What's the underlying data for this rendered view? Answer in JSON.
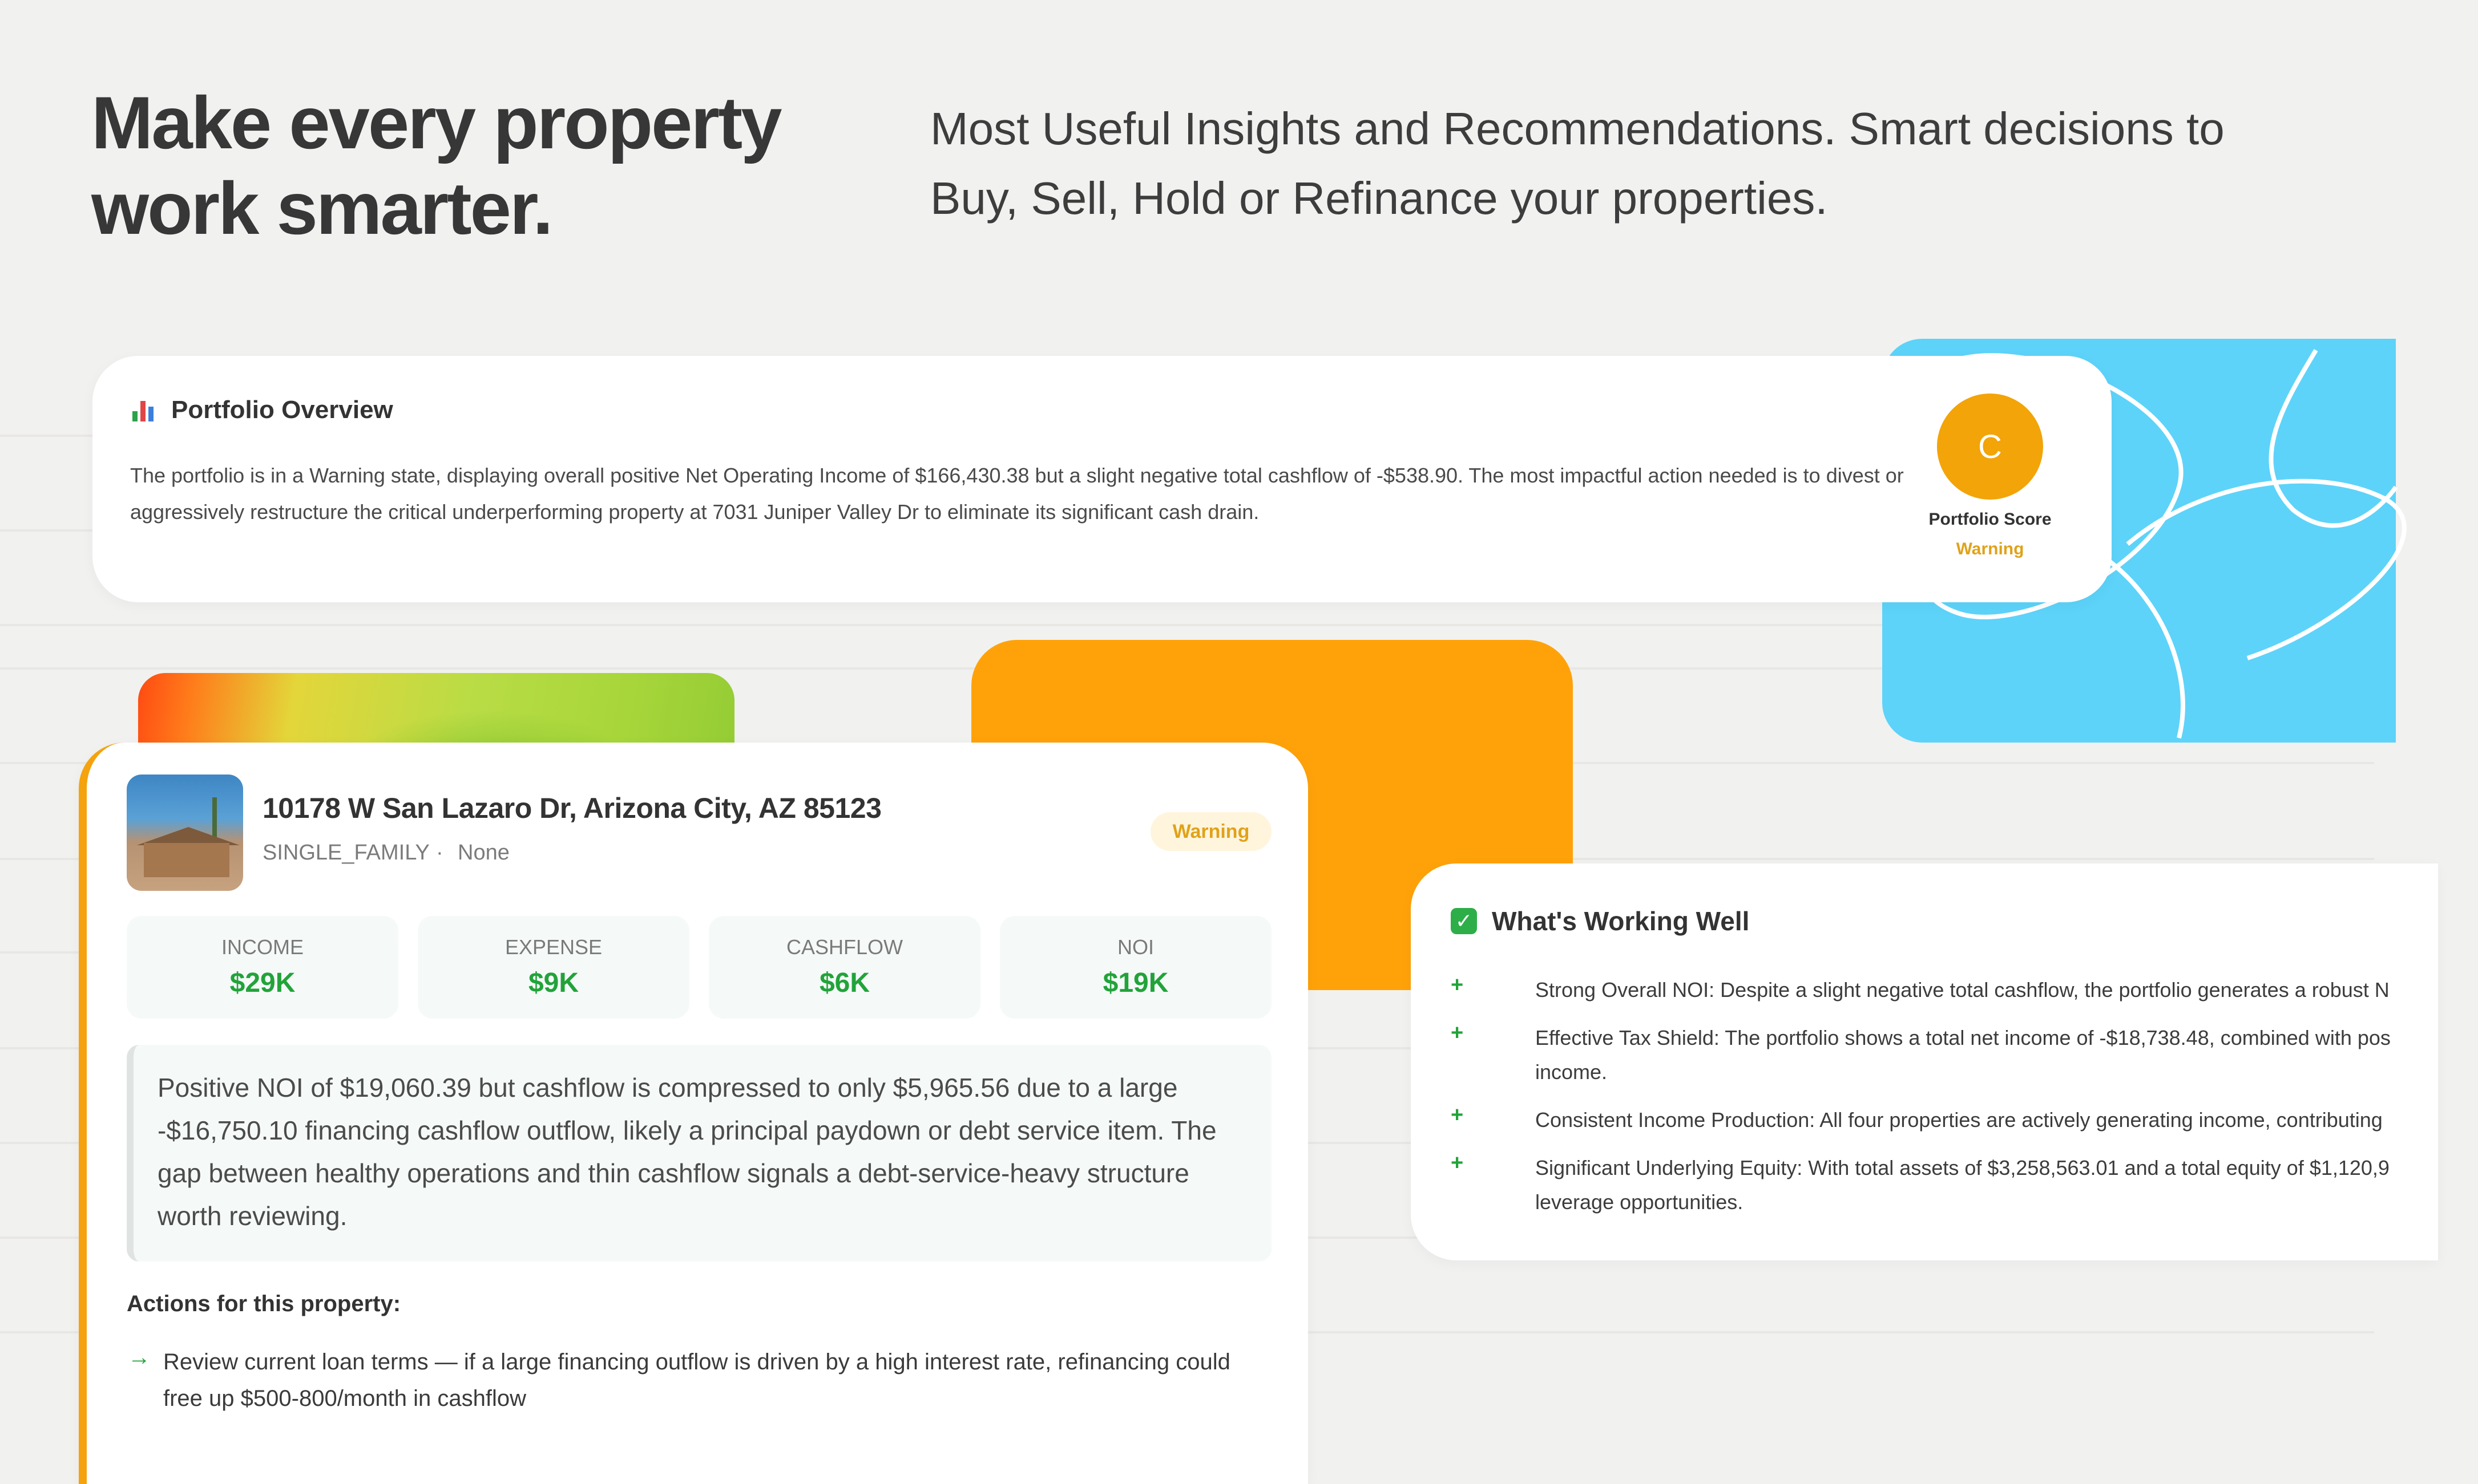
{
  "hero": {
    "title": "Make every property\nwork smarter.",
    "subtitle": "Most Useful Insights and Recommendations. Smart decisions to\nBuy, Sell, Hold or Refinance your properties."
  },
  "overview": {
    "icon": "bar-chart-icon",
    "title": "Portfolio Overview",
    "body": "The portfolio is in a Warning state, displaying overall positive Net Operating Income of $166,430.38 but a slight negative total cashflow of -$538.90. The most impactful action needed is to divest or aggressively restructure the critical underperforming property at 7031 Juniper Valley Dr to eliminate its significant cash drain.",
    "score_grade": "C",
    "score_label": "Portfolio Score",
    "score_status": "Warning"
  },
  "property": {
    "address": "10178 W San Lazaro Dr, Arizona City, AZ 85123",
    "type": "SINGLE_FAMILY",
    "separator": "·",
    "subtype": "None",
    "status": "Warning",
    "metrics": [
      {
        "label": "INCOME",
        "value": "$29K"
      },
      {
        "label": "EXPENSE",
        "value": "$9K"
      },
      {
        "label": "CASHFLOW",
        "value": "$6K"
      },
      {
        "label": "NOI",
        "value": "$19K"
      }
    ],
    "insight": "Positive NOI of $19,060.39 but cashflow is compressed to only $5,965.56 due to a large -$16,750.10 financing cashflow outflow, likely a principal paydown or debt service item. The gap between healthy operations and thin cashflow signals a debt-service-heavy structure worth reviewing.",
    "actions_title": "Actions for this property:",
    "actions": [
      {
        "arrow": "→",
        "text": "Review current loan terms — if a large financing outflow is driven by a high interest rate, refinancing could free up $500-800/month in cashflow"
      }
    ]
  },
  "working_well": {
    "icon": "check-mark-icon",
    "check": "✓",
    "title": "What's Working Well",
    "bullet": "+",
    "items": [
      {
        "text": "Strong Overall NOI: Despite a slight negative total cashflow, the portfolio generates a robust N"
      },
      {
        "text": "Effective Tax Shield: The portfolio shows a total net income of -$18,738.48, combined with pos\nincome."
      },
      {
        "text": "Consistent Income Production: All four properties are actively generating income, contributing"
      },
      {
        "text": "Significant Underlying Equity: With total assets of $3,258,563.01 and a total equity of $1,120,9\nleverage opportunities."
      }
    ]
  },
  "colors": {
    "accent_orange": "#ffa20a",
    "accent_blue": "#5dd3f9",
    "positive_green": "#22a33a",
    "warning_amber": "#e0a21a"
  }
}
